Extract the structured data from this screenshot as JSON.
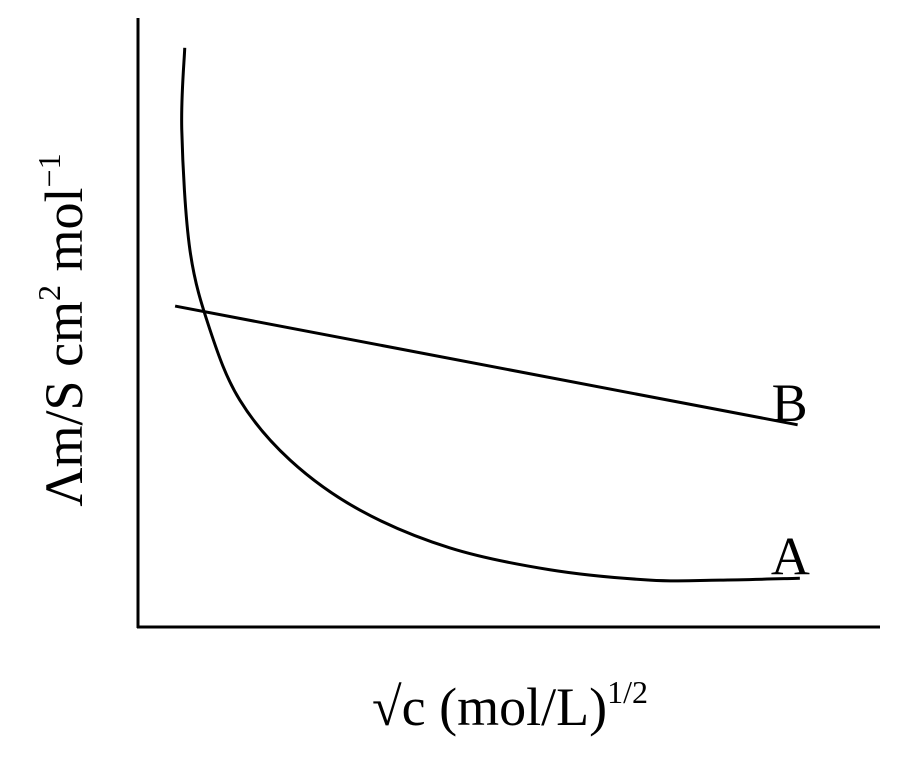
{
  "chart_data": {
    "type": "line",
    "x_label": [
      {
        "text": "√c (mol/L)"
      },
      {
        "sup": "1/2"
      }
    ],
    "y_label": [
      {
        "text": "Λm/S cm"
      },
      {
        "sup": "2"
      },
      {
        "text": " mol"
      },
      {
        "sup": "−1"
      }
    ],
    "xlim": [
      0,
      10
    ],
    "ylim": [
      0,
      10
    ],
    "series": [
      {
        "name": "A",
        "color": "#000000",
        "x": [
          0.63,
          0.59,
          0.7,
          0.97,
          1.37,
          2.05,
          2.99,
          4.2,
          5.55,
          6.9,
          7.84,
          8.92
        ],
        "values": [
          9.51,
          8.16,
          6.19,
          4.88,
          3.73,
          2.74,
          1.92,
          1.3,
          0.94,
          0.77,
          0.77,
          0.8
        ]
      },
      {
        "name": "B",
        "color": "#000000",
        "x": [
          0.5,
          8.89
        ],
        "values": [
          5.27,
          3.32
        ]
      }
    ]
  }
}
